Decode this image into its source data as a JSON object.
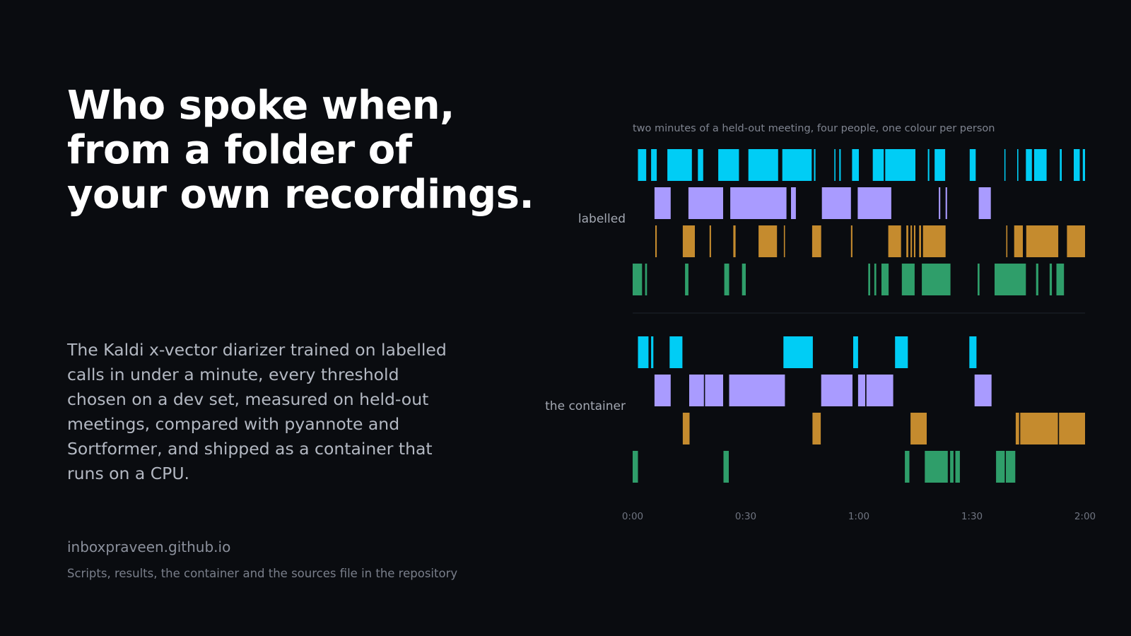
{
  "headline": {
    "line1": "Who spoke when,",
    "line2": "from a folder of",
    "line3": "your own recordings."
  },
  "body": "The Kaldi x-vector diarizer trained on labelled calls in under a minute, every threshold chosen on a dev set, measured on held-out meetings, compared with pyannote and Sortformer, and shipped as a container that runs on a CPU.",
  "footer": {
    "site": "inboxpraveen.github.io",
    "note": "Scripts, results, the container and the sources file in the repository"
  },
  "chart_data": {
    "type": "timeline",
    "caption": "two minutes of a held-out meeting, four people, one colour per person",
    "x_unit": "seconds",
    "xlim": [
      0,
      120
    ],
    "ticks": [
      {
        "value": 0,
        "label": "0:00"
      },
      {
        "value": 30,
        "label": "0:30"
      },
      {
        "value": 60,
        "label": "1:00"
      },
      {
        "value": 90,
        "label": "1:30"
      },
      {
        "value": 120,
        "label": "2:00"
      }
    ],
    "speakers": [
      {
        "id": "s1",
        "color": "#00cdf5"
      },
      {
        "id": "s2",
        "color": "#a99bff"
      },
      {
        "id": "s3",
        "color": "#c58b2e"
      },
      {
        "id": "s4",
        "color": "#2f9e6a"
      }
    ],
    "groups": [
      {
        "label": "labelled",
        "segments": [
          [
            [
              1.4,
              3.6
            ],
            [
              4.9,
              6.4
            ],
            [
              9.2,
              15.7
            ],
            [
              17.3,
              18.7
            ],
            [
              22.7,
              28.2
            ],
            [
              30.7,
              38.6
            ],
            [
              39.7,
              47.5
            ],
            [
              48.1,
              48.5
            ],
            [
              53.5,
              53.8
            ],
            [
              54.8,
              55.2
            ],
            [
              58.2,
              60.0
            ],
            [
              63.7,
              66.6
            ],
            [
              67.0,
              75.0
            ],
            [
              78.3,
              78.7
            ],
            [
              80.1,
              82.9
            ],
            [
              89.4,
              91.0
            ],
            [
              98.6,
              98.8
            ],
            [
              102.0,
              102.3
            ],
            [
              104.3,
              105.9
            ],
            [
              106.5,
              109.8
            ],
            [
              113.3,
              113.8
            ],
            [
              117.0,
              118.6
            ],
            [
              119.4,
              120.0
            ]
          ],
          [
            [
              5.8,
              10.1
            ],
            [
              14.8,
              24.0
            ],
            [
              25.9,
              40.8
            ],
            [
              42.0,
              43.3
            ],
            [
              50.2,
              57.9
            ],
            [
              59.7,
              68.6
            ],
            [
              81.2,
              81.6
            ],
            [
              83.0,
              83.4
            ],
            [
              91.8,
              95.0
            ]
          ],
          [
            [
              6.0,
              6.4
            ],
            [
              13.3,
              16.5
            ],
            [
              20.4,
              20.8
            ],
            [
              26.7,
              27.3
            ],
            [
              33.4,
              38.3
            ],
            [
              40.1,
              40.4
            ],
            [
              47.6,
              50.0
            ],
            [
              57.9,
              58.3
            ],
            [
              67.8,
              71.2
            ],
            [
              72.6,
              73.1
            ],
            [
              73.7,
              74.1
            ],
            [
              74.6,
              75.0
            ],
            [
              76.0,
              76.5
            ],
            [
              77.0,
              83.0
            ],
            [
              99.1,
              99.4
            ],
            [
              101.2,
              103.5
            ],
            [
              104.4,
              112.9
            ],
            [
              115.2,
              120.0
            ]
          ],
          [
            [
              0.0,
              2.5
            ],
            [
              3.3,
              3.8
            ],
            [
              13.9,
              14.8
            ],
            [
              24.3,
              25.6
            ],
            [
              29.0,
              30.0
            ],
            [
              62.5,
              63.0
            ],
            [
              64.1,
              64.6
            ],
            [
              66.0,
              67.9
            ],
            [
              71.4,
              74.8
            ],
            [
              76.7,
              84.3
            ],
            [
              91.5,
              92.0
            ],
            [
              96.0,
              104.3
            ],
            [
              107.0,
              107.6
            ],
            [
              110.6,
              111.2
            ],
            [
              112.4,
              114.4
            ]
          ]
        ]
      },
      {
        "label": "the container",
        "segments": [
          [
            [
              1.4,
              4.2
            ],
            [
              4.9,
              5.5
            ],
            [
              9.8,
              13.2
            ],
            [
              40.0,
              47.8
            ],
            [
              58.5,
              59.8
            ],
            [
              69.6,
              73.0
            ],
            [
              89.3,
              91.2
            ]
          ],
          [
            [
              5.8,
              10.1
            ],
            [
              15.0,
              18.9
            ],
            [
              19.2,
              24.0
            ],
            [
              25.6,
              40.4
            ],
            [
              50.0,
              58.3
            ],
            [
              59.8,
              61.7
            ],
            [
              62.0,
              69.1
            ],
            [
              90.7,
              95.2
            ]
          ],
          [
            [
              13.3,
              15.1
            ],
            [
              47.7,
              49.9
            ],
            [
              73.7,
              78.0
            ],
            [
              101.6,
              102.5
            ],
            [
              102.8,
              112.8
            ],
            [
              113.1,
              120.0
            ]
          ],
          [
            [
              0.0,
              1.4
            ],
            [
              24.1,
              25.5
            ],
            [
              72.2,
              73.4
            ],
            [
              77.5,
              83.6
            ],
            [
              84.2,
              85.1
            ],
            [
              85.6,
              86.8
            ],
            [
              96.4,
              98.7
            ],
            [
              99.0,
              101.5
            ]
          ]
        ]
      }
    ]
  }
}
